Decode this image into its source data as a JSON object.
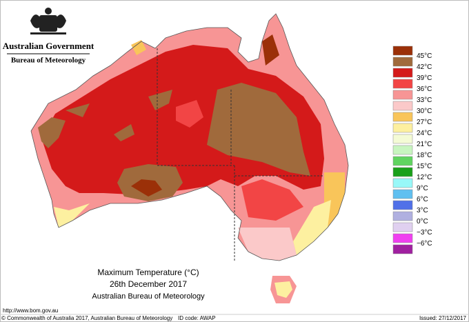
{
  "header": {
    "government": "Australian Government",
    "agency": "Bureau of Meteorology"
  },
  "legend": {
    "colors": [
      "#9b3008",
      "#a06a3c",
      "#d41a1a",
      "#f24545",
      "#f79595",
      "#fbc9c9",
      "#f9c55a",
      "#fdf0a0",
      "#f4fbd5",
      "#c8f5c0",
      "#60d460",
      "#1aa01a",
      "#98f8f8",
      "#60c0f0",
      "#5070e8",
      "#b0b0e0",
      "#e0d0f0",
      "#f040f0",
      "#a020a0"
    ],
    "labels": [
      "45°C",
      "42°C",
      "39°C",
      "36°C",
      "33°C",
      "30°C",
      "27°C",
      "24°C",
      "21°C",
      "18°C",
      "15°C",
      "12°C",
      "9°C",
      "6°C",
      "3°C",
      "0°C",
      "−3°C",
      "−6°C"
    ]
  },
  "title": {
    "line1": "Maximum Temperature (°C)",
    "line2": "26th December 2017",
    "line3": "Australian Bureau of Meteorology"
  },
  "footer": {
    "url": "http://www.bom.gov.au",
    "copyright": "© Commonwealth of Australia 2017, Australian Bureau of Meteorology",
    "id_code": "ID code: AWAP",
    "issued": "Issued: 27/12/2017"
  }
}
